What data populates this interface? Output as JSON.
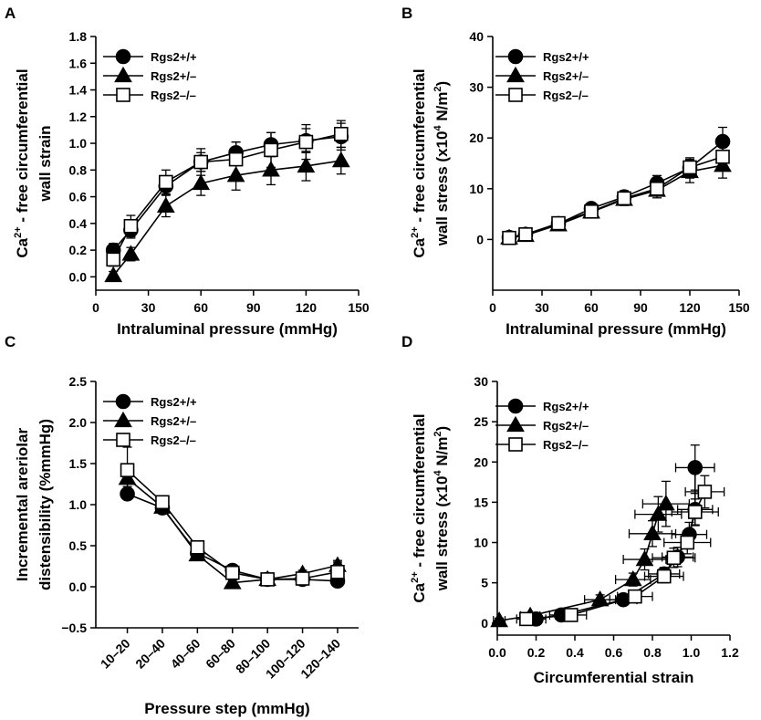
{
  "chart_data": [
    {
      "panel": "A",
      "type": "line",
      "ylabel_lines": [
        "Ca{2+} - free circumferential",
        "wall strain"
      ],
      "xlabel": "Intraluminal pressure (mmHg)",
      "xlim": [
        0,
        150
      ],
      "ylim": [
        -0.1,
        1.8
      ],
      "xticks": [
        0,
        30,
        60,
        90,
        120,
        150
      ],
      "yticks": [
        0.0,
        0.2,
        0.4,
        0.6,
        0.8,
        1.0,
        1.2,
        1.4,
        1.6,
        1.8
      ],
      "ytick_labels": [
        "0.0",
        "0.2",
        "0.4",
        "0.6",
        "0.8",
        "1.0",
        "1.2",
        "1.4",
        "1.6",
        "1.8"
      ],
      "legend_position": "top-left",
      "series": [
        {
          "name": "Rgs2+/+",
          "marker": "circle",
          "x": [
            10,
            20,
            40,
            60,
            80,
            100,
            120,
            140
          ],
          "y": [
            0.2,
            0.35,
            0.68,
            0.86,
            0.93,
            0.99,
            1.02,
            1.05
          ],
          "yerr": [
            0.05,
            0.06,
            0.06,
            0.07,
            0.08,
            0.09,
            0.09,
            0.1
          ]
        },
        {
          "name": "Rgs2+/–",
          "marker": "triangle",
          "x": [
            10,
            20,
            40,
            60,
            80,
            100,
            120,
            140
          ],
          "y": [
            0.01,
            0.17,
            0.53,
            0.7,
            0.76,
            0.8,
            0.83,
            0.87
          ],
          "yerr": [
            0.03,
            0.05,
            0.08,
            0.09,
            0.11,
            0.11,
            0.11,
            0.1
          ]
        },
        {
          "name": "Rgs2–/–",
          "marker": "square",
          "x": [
            10,
            20,
            40,
            60,
            80,
            100,
            120,
            140
          ],
          "y": [
            0.13,
            0.38,
            0.71,
            0.86,
            0.88,
            0.95,
            1.01,
            1.07
          ],
          "yerr": [
            0.05,
            0.08,
            0.09,
            0.1,
            0.13,
            0.13,
            0.13,
            0.1
          ]
        }
      ]
    },
    {
      "panel": "B",
      "type": "line",
      "ylabel_lines": [
        "Ca{2+} - free circumferential",
        "wall stress (x10{4} N/m{2})"
      ],
      "xlabel": "Intraluminal pressure (mmHg)",
      "xlim": [
        0,
        150
      ],
      "ylim": [
        -10,
        40
      ],
      "xticks": [
        0,
        30,
        60,
        90,
        120,
        150
      ],
      "yticks": [
        0,
        10,
        20,
        30,
        40
      ],
      "ytick_labels": [
        "0",
        "10",
        "20",
        "30",
        "40"
      ],
      "legend_position": "top-left",
      "series": [
        {
          "name": "Rgs2+/+",
          "marker": "circle",
          "x": [
            10,
            20,
            40,
            60,
            80,
            100,
            120,
            140
          ],
          "y": [
            0.4,
            1.0,
            3.1,
            6.1,
            8.4,
            11.1,
            14.1,
            19.3
          ],
          "yerr": [
            0.3,
            0.4,
            0.5,
            0.8,
            1.2,
            1.5,
            2.0,
            2.8
          ]
        },
        {
          "name": "Rgs2+/–",
          "marker": "triangle",
          "x": [
            10,
            20,
            40,
            60,
            80,
            100,
            120,
            140
          ],
          "y": [
            0.3,
            0.8,
            2.9,
            5.4,
            7.9,
            9.7,
            13.4,
            14.6
          ],
          "yerr": [
            0.3,
            0.4,
            0.6,
            0.8,
            1.2,
            1.5,
            2.2,
            2.5
          ]
        },
        {
          "name": "Rgs2–/–",
          "marker": "square",
          "x": [
            10,
            20,
            40,
            60,
            80,
            100,
            120,
            140
          ],
          "y": [
            0.3,
            1.0,
            3.2,
            5.5,
            8.1,
            10.0,
            14.2,
            16.3
          ],
          "yerr": [
            0.3,
            0.4,
            0.6,
            0.8,
            1.2,
            1.4,
            1.6,
            2.0
          ]
        }
      ]
    },
    {
      "panel": "C",
      "type": "line",
      "ylabel_lines": [
        "Incremental areriolar",
        "distensibility (%mmHg)"
      ],
      "xlabel": "Pressure step (mmHg)",
      "categories": [
        "10–20",
        "20–40",
        "40–60",
        "60–80",
        "80–100",
        "100–120",
        "120–140"
      ],
      "ylim": [
        -0.5,
        2.5
      ],
      "yticks": [
        -0.5,
        0.0,
        0.5,
        1.0,
        1.5,
        2.0,
        2.5
      ],
      "ytick_labels": [
        "−0.5",
        "0.0",
        "0.5",
        "1.0",
        "1.5",
        "2.0",
        "2.5"
      ],
      "legend_position": "top-left",
      "series": [
        {
          "name": "Rgs2+/+",
          "marker": "circle",
          "values": [
            1.13,
            0.96,
            0.41,
            0.2,
            0.09,
            0.09,
            0.07
          ],
          "yerr": [
            0.06,
            0.06,
            0.05,
            0.04,
            0.03,
            0.03,
            0.03
          ]
        },
        {
          "name": "Rgs2+/–",
          "marker": "triangle",
          "values": [
            1.32,
            0.97,
            0.39,
            0.05,
            0.09,
            0.16,
            0.26
          ],
          "yerr": [
            0.1,
            0.07,
            0.05,
            0.03,
            0.03,
            0.04,
            0.06
          ]
        },
        {
          "name": "Rgs2–/–",
          "marker": "square",
          "values": [
            1.42,
            1.03,
            0.48,
            0.17,
            0.09,
            0.1,
            0.18
          ],
          "yerr": [
            0.28,
            0.07,
            0.06,
            0.05,
            0.03,
            0.04,
            0.12
          ]
        }
      ]
    },
    {
      "panel": "D",
      "type": "scatter",
      "ylabel_lines": [
        "Ca{2+} - free circumferential",
        "wall stress (x10{4} N/m{2})"
      ],
      "xlabel": "Circumferential strain",
      "xlim": [
        0.0,
        1.2
      ],
      "ylim": [
        -1.5,
        30
      ],
      "xticks": [
        0.0,
        0.2,
        0.4,
        0.6,
        0.8,
        1.0,
        1.2
      ],
      "xtick_labels": [
        "0.0",
        "0.2",
        "0.4",
        "0.6",
        "0.8",
        "1.0",
        "1.2"
      ],
      "yticks": [
        0,
        5,
        10,
        15,
        20,
        25,
        30
      ],
      "ytick_labels": [
        "0",
        "5",
        "10",
        "15",
        "20",
        "25",
        "30"
      ],
      "legend_position": "top-left",
      "series": [
        {
          "name": "Rgs2+/+",
          "marker": "circle",
          "x": [
            0.2,
            0.33,
            0.65,
            0.86,
            0.93,
            0.99,
            1.02,
            1.02
          ],
          "y": [
            0.5,
            1.0,
            2.9,
            6.1,
            8.2,
            11.0,
            14.1,
            19.3
          ],
          "xerr": [
            0.05,
            0.06,
            0.07,
            0.08,
            0.08,
            0.09,
            0.09,
            0.1
          ],
          "yerr": [
            0.3,
            0.4,
            0.5,
            0.8,
            1.2,
            1.5,
            2.0,
            2.8
          ]
        },
        {
          "name": "Rgs2+/–",
          "marker": "triangle",
          "x": [
            0.01,
            0.17,
            0.53,
            0.7,
            0.76,
            0.8,
            0.83,
            0.87
          ],
          "y": [
            0.3,
            0.9,
            2.9,
            5.4,
            7.9,
            11.1,
            13.5,
            14.8
          ],
          "xerr": [
            0.03,
            0.05,
            0.08,
            0.09,
            0.11,
            0.12,
            0.12,
            0.12
          ],
          "yerr": [
            0.3,
            0.4,
            0.6,
            0.8,
            1.3,
            1.6,
            2.2,
            2.8
          ]
        },
        {
          "name": "Rgs2–/–",
          "marker": "square",
          "x": [
            0.15,
            0.38,
            0.71,
            0.86,
            0.91,
            0.98,
            1.02,
            1.07
          ],
          "y": [
            0.5,
            1.0,
            3.3,
            5.8,
            8.1,
            10.0,
            13.8,
            16.3
          ],
          "xerr": [
            0.05,
            0.08,
            0.09,
            0.1,
            0.11,
            0.12,
            0.12,
            0.1
          ],
          "yerr": [
            0.3,
            0.4,
            0.6,
            0.8,
            1.2,
            1.4,
            1.6,
            2.0
          ]
        }
      ]
    }
  ]
}
